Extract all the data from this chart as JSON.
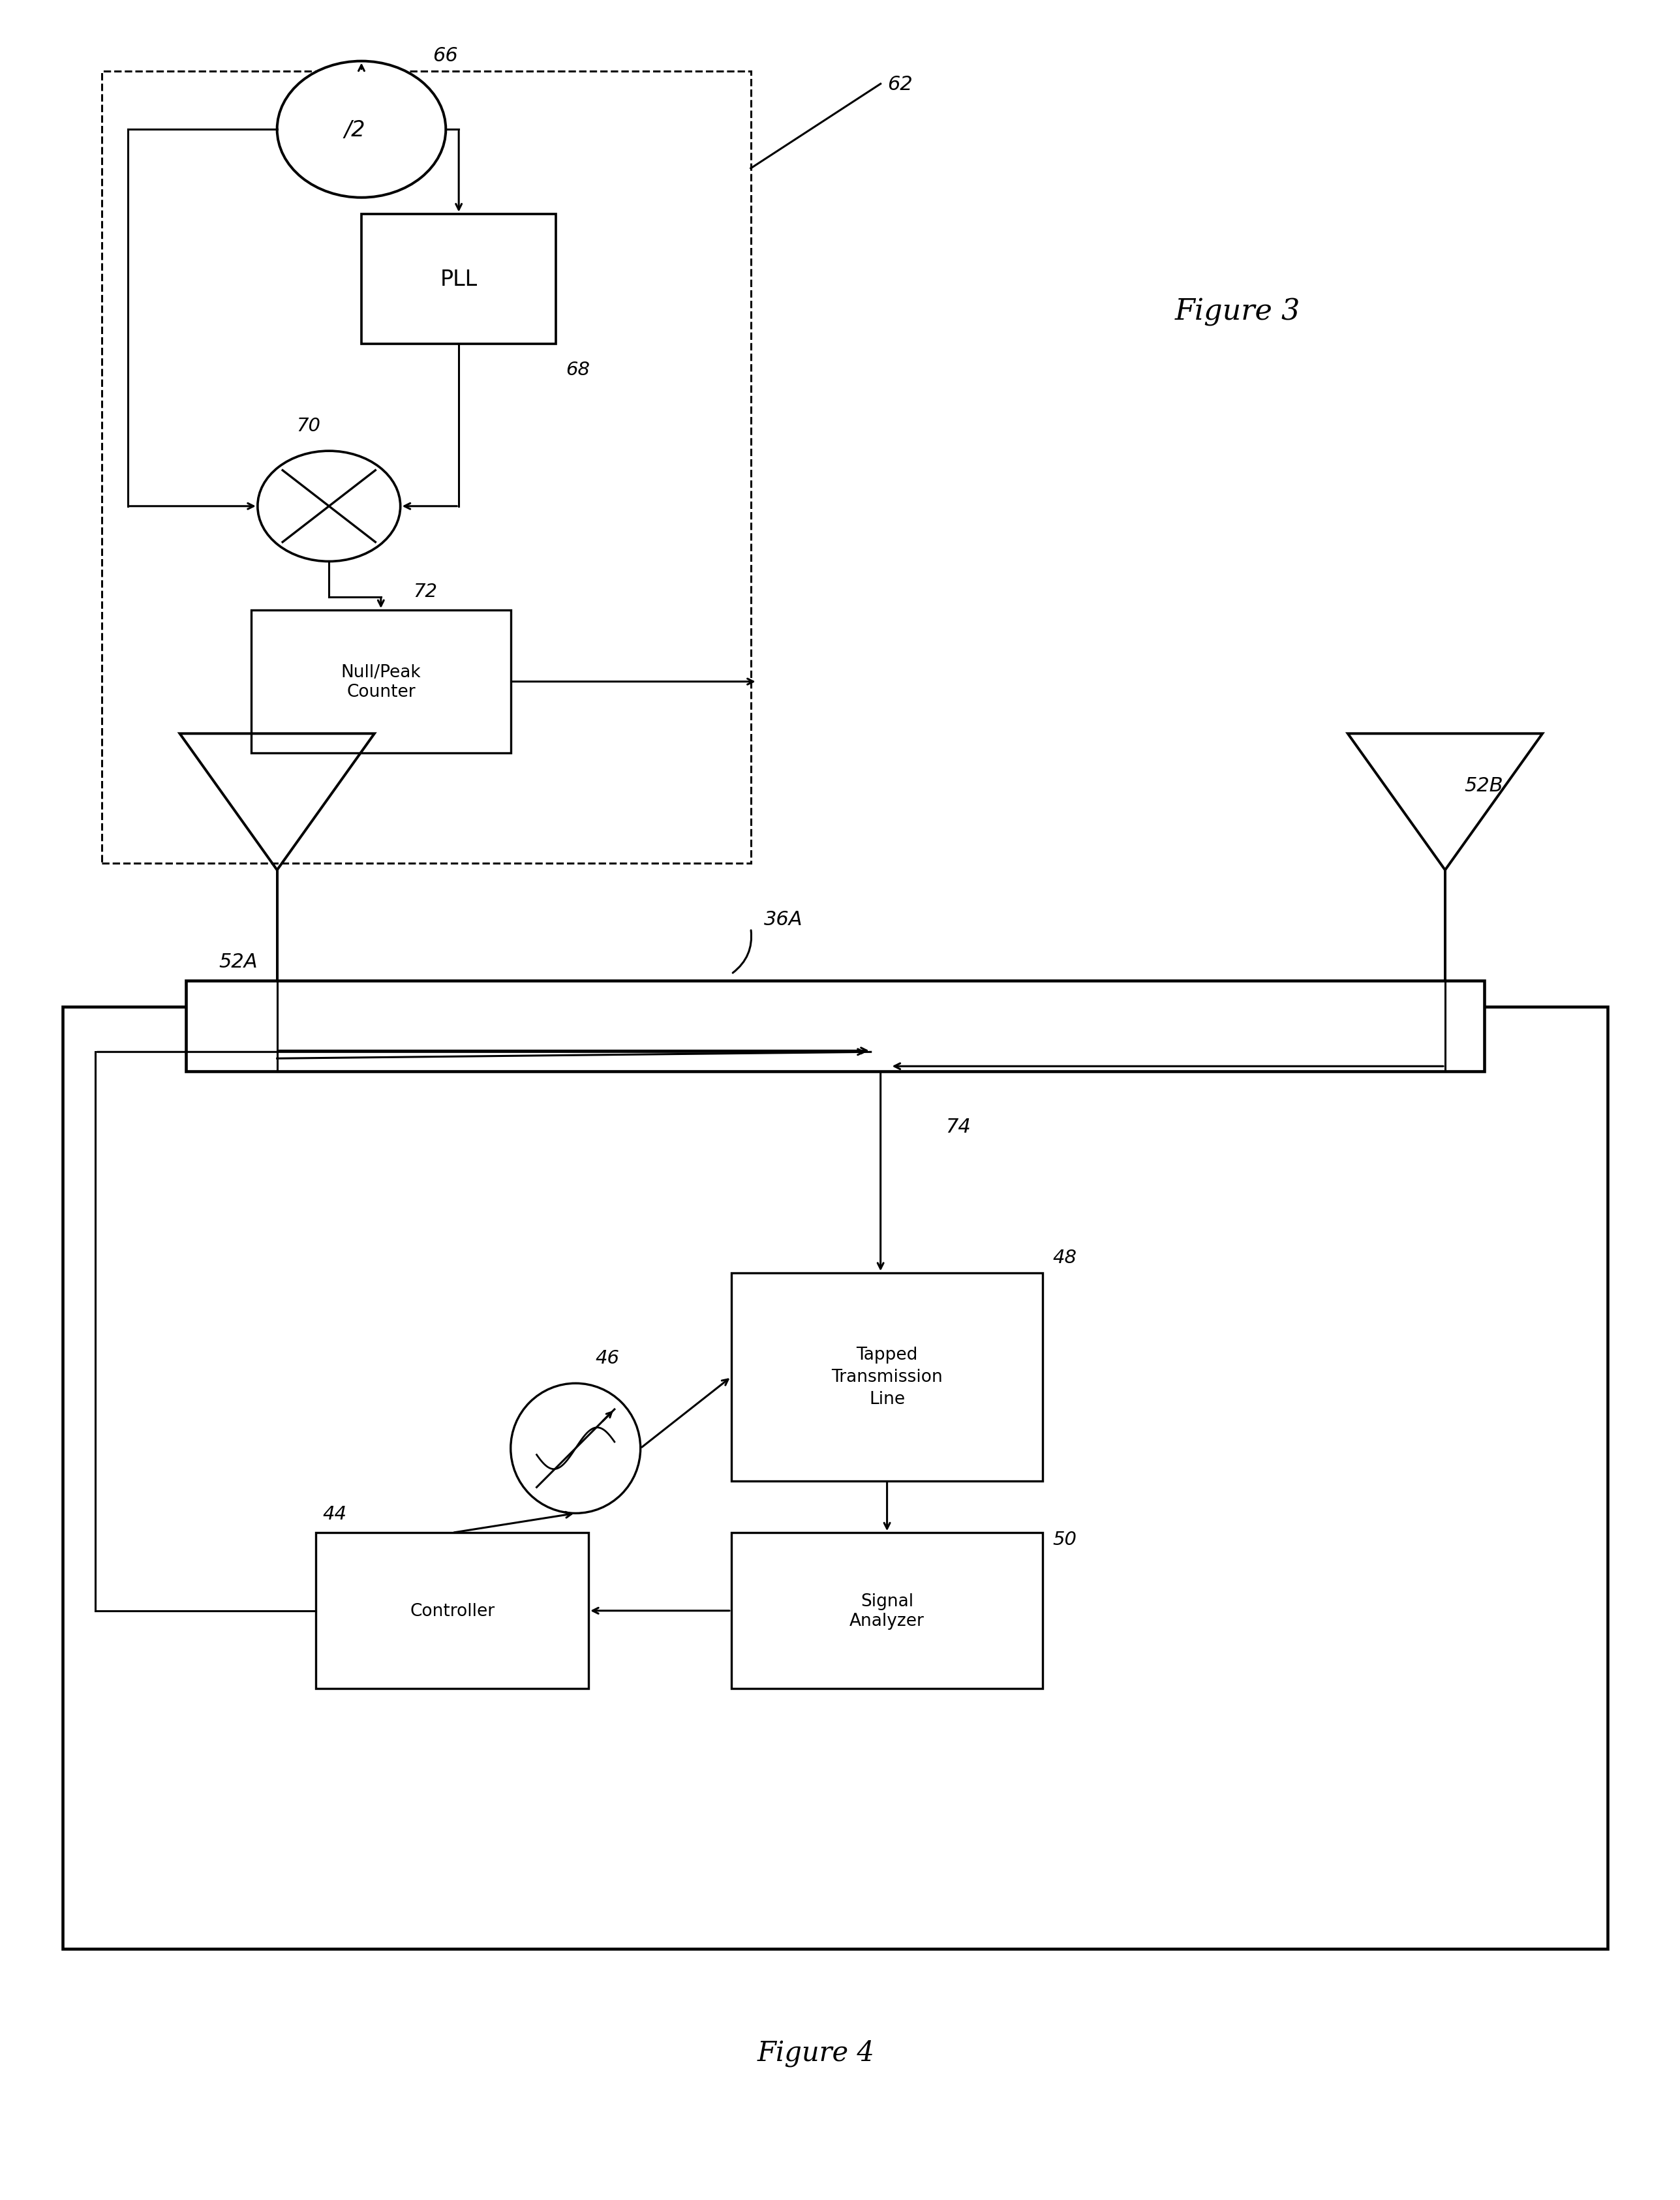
{
  "fig_width": 25.75,
  "fig_height": 33.73,
  "bg_color": "#ffffff",
  "line_color": "#000000",
  "lw": 2.2,
  "fig3_label": "Figure 3",
  "fig4_label": "Figure 4",
  "label_66": "66",
  "label_62": "62",
  "label_68": "68",
  "label_70": "70",
  "label_72": "72",
  "label_pll": "PLL",
  "label_null_peak": "Null/Peak\nCounter",
  "label_div2": "/2",
  "label_46": "46",
  "label_48": "48",
  "label_50": "50",
  "label_44": "44",
  "label_74": "74",
  "label_36A": "36A",
  "label_52A": "52A",
  "label_52B": "52B",
  "label_tapped": "Tapped\nTransmission\nLine",
  "label_signal_analyzer": "Signal\nAnalyzer",
  "label_controller": "Controller"
}
